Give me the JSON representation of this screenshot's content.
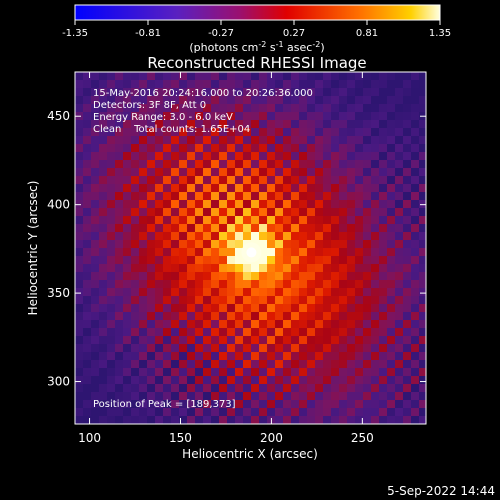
{
  "chart_data": {
    "type": "heatmap",
    "title": "Reconstructed RHESSI Image",
    "xlabel": "Heliocentric X (arcsec)",
    "ylabel": "Heliocentric Y (arcsec)",
    "xlim": [
      92,
      285
    ],
    "ylim": [
      276,
      475
    ],
    "xticks": [
      100,
      150,
      200,
      250
    ],
    "yticks": [
      300,
      350,
      400,
      450
    ],
    "colorbar": {
      "range": [
        -1.35,
        1.35
      ],
      "ticks": [
        "-1.35",
        "-0.81",
        "-0.27",
        "0.27",
        "0.81",
        "1.35"
      ],
      "unit_label": "(photons cm",
      "unit_exp1": "-2",
      "unit_mid": " s",
      "unit_exp2": "-1",
      "unit_mid2": " asec",
      "unit_exp3": "-2",
      "unit_end": ")"
    },
    "annotations": [
      "15-May-2016 20:24:16.000 to 20:26:36.000",
      "Detectors: 3F 8F, Att 0",
      "Energy Range: 3.0 - 6.0 keV",
      "Clean    Total counts: 1.65E+04"
    ],
    "peak": {
      "x": 189,
      "y": 373,
      "label": "Position of Peak = [189,373]"
    },
    "grid": false,
    "colormap": "hot-violet"
  },
  "footer": {
    "date": "5-Sep-2022 14:44"
  }
}
